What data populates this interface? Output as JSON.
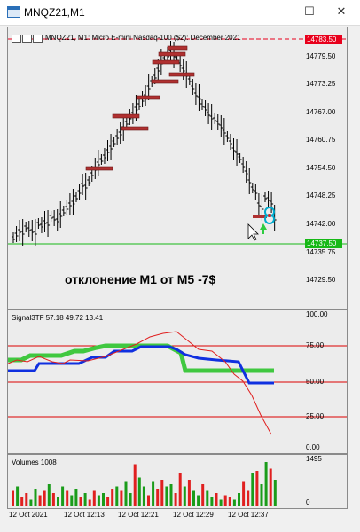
{
  "window": {
    "title": "MNQZ21,M1",
    "minimize_glyph": "—",
    "maximize_glyph": "☐",
    "close_glyph": "✕"
  },
  "chart": {
    "info": "MNQZ21, M1:  Micro E-mini Nasdaq-100 ($2): December 2021",
    "annotation": "отклонение M1 от M5 -7$",
    "price_labels": [
      "14779.50",
      "14773.25",
      "14767.00",
      "14760.75",
      "14754.50",
      "14748.25",
      "14742.00",
      "14735.75",
      "14729.50"
    ],
    "top_tag": "14783.50",
    "current_tag": "14737.50",
    "colors": {
      "top_tag": "#e8001c",
      "current_tag": "#16b816",
      "bar": "#000000",
      "order_box": "#b03030",
      "up_arrow": "#2ecc40"
    }
  },
  "indicator": {
    "title": "Signal3TF 57.18 49.72 13.41",
    "levels": [
      "100.00",
      "75.00",
      "50.00",
      "25.00",
      "0.00"
    ],
    "colors": {
      "fast": "#e02020",
      "mid": "#1030e0",
      "slow": "#40c840",
      "level": "#dd0000"
    }
  },
  "volumes": {
    "title": "Volumes 1008",
    "max_label": "1495",
    "min_label": "0",
    "colors": {
      "up": "#1a9c1a",
      "down": "#e02020"
    }
  },
  "time_axis": [
    "12 Oct 2021",
    "12 Oct 12:13",
    "12 Oct 12:21",
    "12 Oct 12:29",
    "12 Oct 12:37"
  ]
}
